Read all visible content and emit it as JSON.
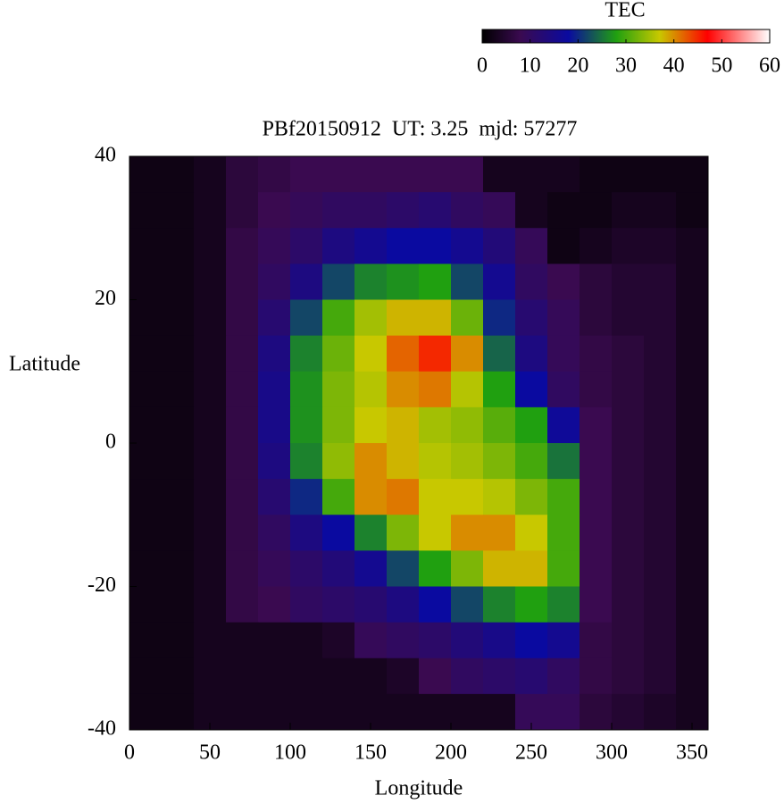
{
  "chart_data": {
    "type": "heatmap",
    "title": "PBf20150912  UT: 3.25  mjd: 57277",
    "xlabel": "Longitude",
    "ylabel": "Latitude",
    "colorbar_label": "TEC",
    "x": [
      10,
      30,
      50,
      70,
      90,
      110,
      130,
      150,
      170,
      190,
      210,
      230,
      250,
      270,
      290,
      310,
      330,
      350
    ],
    "y": [
      37.5,
      32.5,
      27.5,
      22.5,
      17.5,
      12.5,
      7.5,
      2.5,
      -2.5,
      -7.5,
      -12.5,
      -17.5,
      -22.5,
      -27.5,
      -32.5,
      -37.5
    ],
    "z": [
      [
        2,
        2,
        3,
        6,
        7,
        8,
        8,
        8,
        8,
        8,
        8,
        3,
        3,
        3,
        2,
        2,
        2,
        2
      ],
      [
        2,
        2,
        3,
        6,
        8,
        9,
        10,
        10,
        11,
        12,
        10,
        9,
        3,
        2,
        2,
        3,
        3,
        2
      ],
      [
        2,
        2,
        3,
        7,
        9,
        11,
        14,
        16,
        18,
        18,
        16,
        13,
        9,
        2,
        3,
        4,
        4,
        3
      ],
      [
        2,
        2,
        3,
        7,
        10,
        14,
        22,
        26,
        27,
        28,
        22,
        16,
        10,
        8,
        6,
        5,
        5,
        3
      ],
      [
        2,
        2,
        3,
        7,
        12,
        22,
        30,
        35,
        38,
        38,
        32,
        20,
        12,
        9,
        6,
        5,
        5,
        3
      ],
      [
        2,
        2,
        3,
        7,
        14,
        26,
        32,
        37,
        42,
        45,
        40,
        24,
        14,
        9,
        7,
        6,
        5,
        3
      ],
      [
        2,
        2,
        3,
        7,
        15,
        27,
        33,
        36,
        40,
        41,
        36,
        28,
        18,
        10,
        7,
        6,
        5,
        3
      ],
      [
        2,
        2,
        3,
        7,
        15,
        27,
        33,
        37,
        38,
        35,
        34,
        31,
        28,
        17,
        8,
        6,
        5,
        3
      ],
      [
        2,
        2,
        3,
        7,
        14,
        26,
        34,
        40,
        38,
        36,
        35,
        33,
        30,
        25,
        8,
        6,
        5,
        3
      ],
      [
        2,
        2,
        3,
        7,
        12,
        20,
        30,
        40,
        41,
        37,
        37,
        36,
        33,
        30,
        8,
        6,
        5,
        3
      ],
      [
        2,
        2,
        3,
        7,
        10,
        14,
        18,
        26,
        33,
        37,
        40,
        40,
        37,
        30,
        8,
        6,
        5,
        3
      ],
      [
        2,
        2,
        3,
        7,
        9,
        11,
        13,
        16,
        22,
        28,
        33,
        38,
        38,
        30,
        8,
        6,
        5,
        3
      ],
      [
        2,
        2,
        3,
        7,
        8,
        10,
        11,
        12,
        14,
        18,
        22,
        26,
        28,
        26,
        8,
        6,
        5,
        3
      ],
      [
        2,
        2,
        3,
        3,
        3,
        3,
        4,
        9,
        10,
        11,
        13,
        15,
        18,
        16,
        7,
        6,
        5,
        3
      ],
      [
        2,
        2,
        3,
        3,
        3,
        3,
        3,
        3,
        4,
        8,
        10,
        11,
        12,
        10,
        7,
        6,
        5,
        3
      ],
      [
        2,
        2,
        3,
        3,
        3,
        3,
        3,
        3,
        3,
        3,
        3,
        3,
        9,
        9,
        6,
        5,
        4,
        3
      ]
    ],
    "xlim": [
      0,
      360
    ],
    "ylim": [
      -40,
      40
    ],
    "xticks": [
      0,
      50,
      100,
      150,
      200,
      250,
      300,
      350
    ],
    "yticks": [
      40,
      20,
      0,
      -20,
      -40
    ],
    "clim": [
      0,
      60
    ],
    "cticks": [
      0,
      10,
      20,
      30,
      40,
      50,
      60
    ],
    "colormap": [
      {
        "value": 0,
        "color": "#000000"
      },
      {
        "value": 8,
        "color": "#3a0a50"
      },
      {
        "value": 18,
        "color": "#0a0aa0"
      },
      {
        "value": 28,
        "color": "#20a010"
      },
      {
        "value": 37,
        "color": "#c8c800"
      },
      {
        "value": 47,
        "color": "#ff0000"
      },
      {
        "value": 60,
        "color": "#ffffff"
      }
    ]
  }
}
